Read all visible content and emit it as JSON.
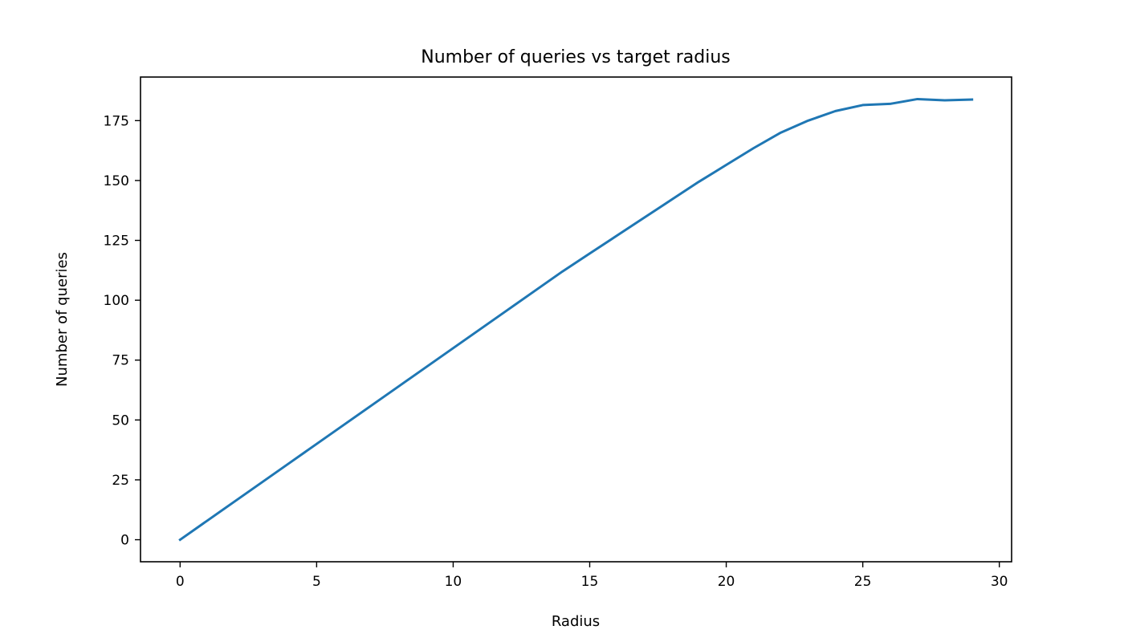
{
  "chart_data": {
    "type": "line",
    "title": "Number of queries vs target radius",
    "xlabel": "Radius",
    "ylabel": "Number of queries",
    "xlim": [
      -1.45,
      30.45
    ],
    "ylim": [
      -9.2,
      193.2
    ],
    "xticks": [
      0,
      5,
      10,
      15,
      20,
      25,
      30
    ],
    "yticks": [
      0,
      25,
      50,
      75,
      100,
      125,
      150,
      175
    ],
    "grid": false,
    "legend": "none",
    "series": [
      {
        "color": "#1f77b4",
        "x": [
          0,
          1,
          2,
          3,
          4,
          5,
          6,
          7,
          8,
          9,
          10,
          11,
          12,
          13,
          14,
          15,
          16,
          17,
          18,
          19,
          20,
          21,
          22,
          23,
          24,
          25,
          26,
          27,
          28,
          29
        ],
        "y": [
          0,
          8,
          16,
          24,
          32,
          40,
          48,
          56,
          64,
          72,
          80,
          88,
          96,
          104,
          112,
          119.5,
          127,
          134.5,
          142,
          149.5,
          156.5,
          163.5,
          170,
          175,
          179,
          181.5,
          182,
          184,
          183.5,
          183.8
        ]
      }
    ]
  }
}
